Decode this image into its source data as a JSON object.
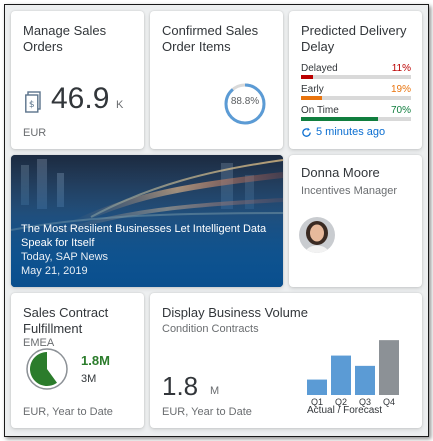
{
  "tiles": {
    "sales_orders": {
      "title": "Manage Sales Orders",
      "value": "46.9",
      "unit": "K",
      "footer": "EUR",
      "icon": "document-currency-icon"
    },
    "confirmed_items": {
      "title": "Confirmed Sales Order Items",
      "percent_label": "88.8%",
      "percent": 88.8,
      "color": "#5b9bd5"
    },
    "delivery_delay": {
      "title": "Predicted Delivery Delay",
      "rows": [
        {
          "label": "Delayed",
          "value": "11%",
          "fraction": 0.11,
          "color": "#bb0000"
        },
        {
          "label": "Early",
          "value": "19%",
          "fraction": 0.19,
          "color": "#e9730c"
        },
        {
          "label": "On Time",
          "value": "70%",
          "fraction": 0.7,
          "color": "#107e3e"
        }
      ],
      "refresh": "5 minutes ago"
    },
    "news": {
      "headline": "The Most Resilient Businesses Let Intelligent Data Speak for Itself",
      "source": "Today, SAP News",
      "date": "May 21, 2019"
    },
    "profile": {
      "name": "Donna Moore",
      "role": "Incentives Manager"
    },
    "contract": {
      "title": "Sales Contract Fulfillment",
      "subtitle": "EMEA",
      "big_value": "1.8M",
      "small_value": "3M",
      "fraction": 0.6,
      "footer": "EUR, Year to Date",
      "color": "#2b7c2b"
    },
    "volume": {
      "title": "Display Business Volume",
      "subtitle": "Condition Contracts",
      "value": "1.8",
      "unit": "M",
      "footer": "EUR, Year to Date",
      "legend": "Actual / Forecast"
    }
  },
  "chart_data": {
    "type": "bar",
    "categories": [
      "Q1",
      "Q2",
      "Q3",
      "Q4"
    ],
    "values": [
      0.9,
      2.3,
      1.7,
      3.2
    ],
    "series_colors": [
      "#5b9bd5",
      "#5b9bd5",
      "#5b9bd5",
      "#8c9196"
    ],
    "ylim": [
      0,
      3.5
    ],
    "grid": false,
    "legend": "Actual / Forecast"
  }
}
